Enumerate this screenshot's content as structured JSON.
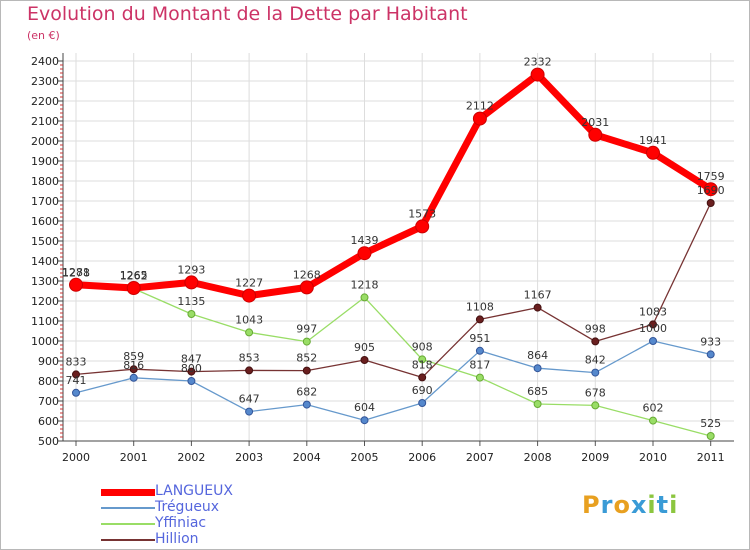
{
  "header": {
    "title": "Evolution du Montant de la Dette par Habitant",
    "subtitle": "(en €)"
  },
  "brand": {
    "letters": [
      "P",
      "r",
      "o",
      "x",
      "i",
      "t",
      "i"
    ],
    "colors": [
      "#e8a020",
      "#3a9bd6",
      "#e8a020",
      "#3a9bd6",
      "#8cc63f",
      "#3a9bd6",
      "#8cc63f"
    ]
  },
  "chart_data": {
    "type": "line",
    "title": "Evolution du Montant de la Dette par Habitant",
    "subtitle": "(en €)",
    "xlabel": "",
    "ylabel": "",
    "x": [
      "2000",
      "2001",
      "2002",
      "2003",
      "2004",
      "2005",
      "2006",
      "2007",
      "2008",
      "2009",
      "2010",
      "2011"
    ],
    "ylim": [
      500,
      2400
    ],
    "yticks": [
      500,
      600,
      700,
      800,
      900,
      1000,
      1100,
      1200,
      1300,
      1400,
      1500,
      1600,
      1700,
      1800,
      1900,
      2000,
      2100,
      2200,
      2300,
      2400
    ],
    "grid": true,
    "legend_position": "bottom-left",
    "series": [
      {
        "name": "LANGUEUX",
        "color": "#ff0000",
        "values": [
          1281,
          1265,
          1293,
          1227,
          1268,
          1439,
          1573,
          2112,
          2332,
          2031,
          1941,
          1759
        ]
      },
      {
        "name": "Trégueux",
        "color": "#6699cc",
        "values": [
          741,
          816,
          800,
          647,
          682,
          604,
          690,
          951,
          864,
          842,
          1000,
          933
        ]
      },
      {
        "name": "Yffiniac",
        "color": "#99dd66",
        "values": [
          1278,
          1262,
          1135,
          1043,
          997,
          1218,
          908,
          817,
          685,
          678,
          602,
          525
        ]
      },
      {
        "name": "Hillion",
        "color": "#773333",
        "values": [
          833,
          859,
          847,
          853,
          852,
          905,
          818,
          1108,
          1167,
          998,
          1083,
          1690
        ]
      }
    ]
  }
}
